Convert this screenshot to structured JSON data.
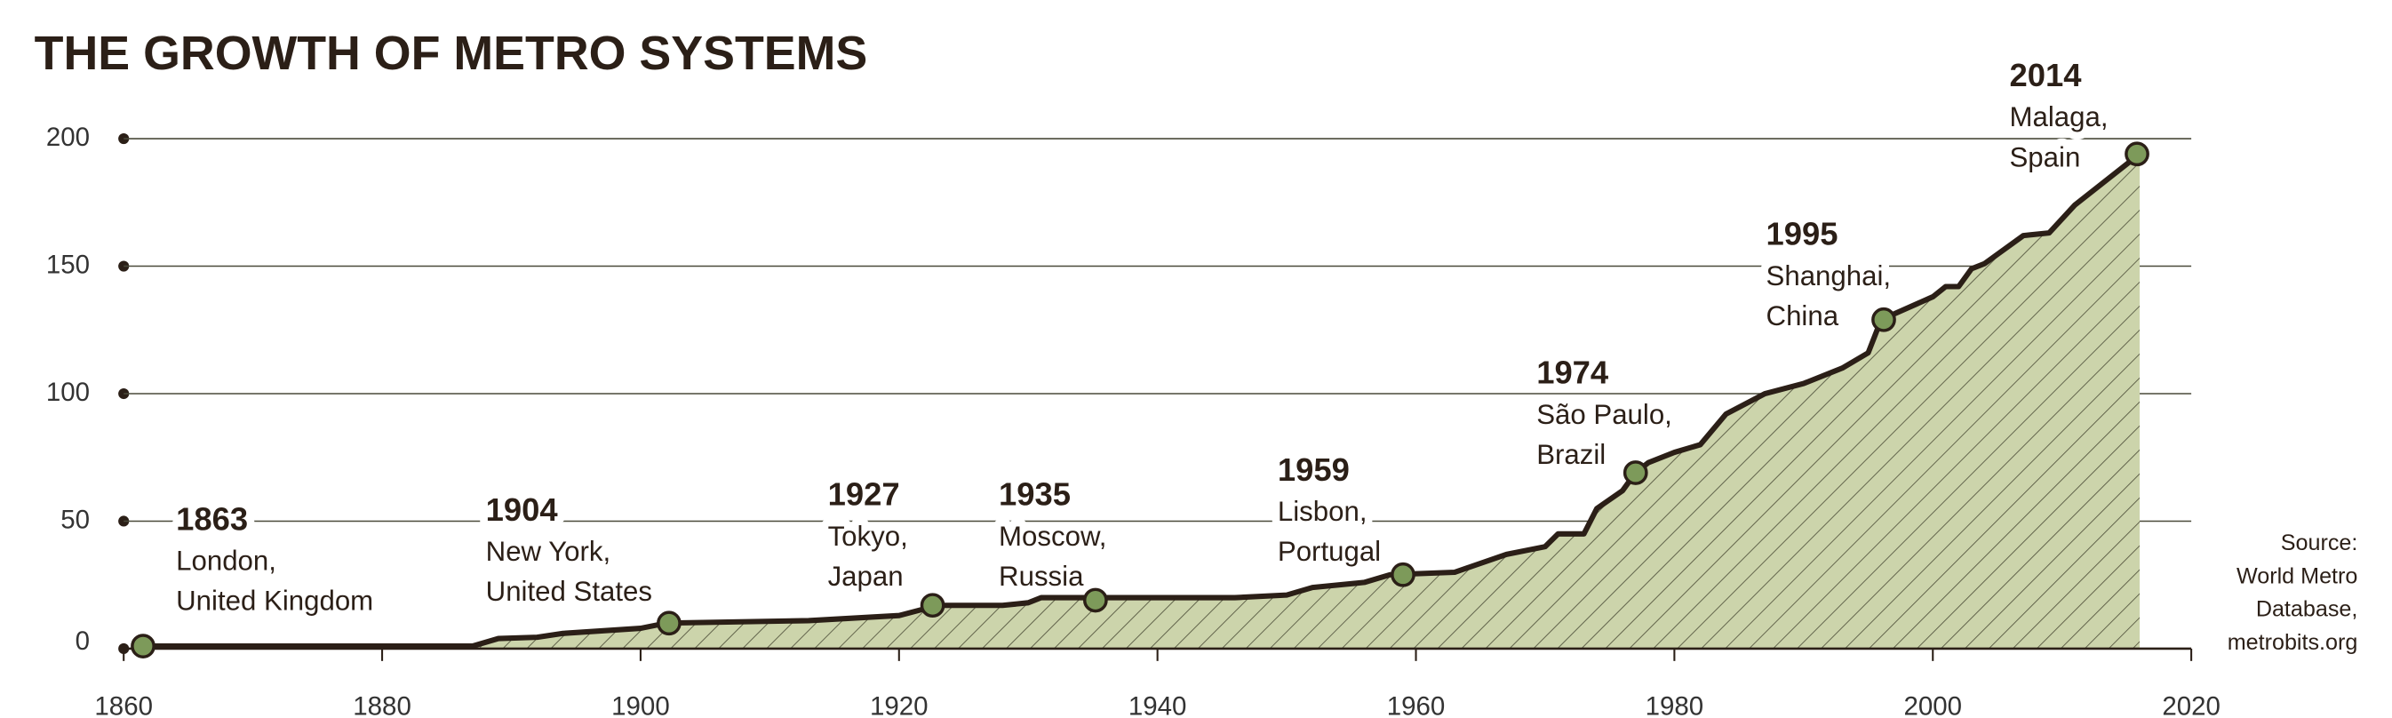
{
  "chart_data": {
    "type": "area",
    "title": "THE GROWTH OF METRO SYSTEMS",
    "x": [
      1861.5,
      1887,
      1889,
      1892,
      1894,
      1900,
      1902,
      1913,
      1920,
      1923,
      1928,
      1930,
      1931,
      1946,
      1950,
      1952,
      1956,
      1958,
      1963,
      1967,
      1970,
      1971,
      1973,
      1974,
      1976,
      1977,
      1978,
      1980,
      1982,
      1984,
      1987,
      1990,
      1993,
      1995,
      1996,
      2000,
      2001,
      2002,
      2003,
      2004,
      2007,
      2009,
      2011,
      2016
    ],
    "values": [
      1,
      1,
      4,
      4.5,
      6,
      8,
      10,
      11,
      13,
      17,
      17,
      18,
      20,
      20,
      21,
      24,
      26,
      29,
      30,
      37,
      40,
      45,
      45,
      55,
      62,
      69,
      73,
      77,
      80,
      92,
      100,
      104,
      110,
      116,
      129,
      138,
      142,
      142,
      149,
      151,
      162,
      163,
      174,
      194
    ],
    "color": "#2b1f17",
    "fill": "#ccd4ab",
    "xlim": [
      1860,
      2020
    ],
    "ylim": [
      0,
      200
    ],
    "xticks": [
      1860,
      1880,
      1900,
      1920,
      1940,
      1960,
      1980,
      2000,
      2020
    ],
    "yticks": [
      0,
      50,
      100,
      150,
      200
    ],
    "grid": true,
    "milestones": [
      {
        "year": "1863",
        "place": [
          "London,",
          "United Kingdom"
        ],
        "x": 1861.5,
        "y": 1
      },
      {
        "year": "1904",
        "place": [
          "New York,",
          "United States"
        ],
        "x": 1902.2,
        "y": 10
      },
      {
        "year": "1927",
        "place": [
          "Tokyo,",
          "Japan"
        ],
        "x": 1922.6,
        "y": 17
      },
      {
        "year": "1935",
        "place": [
          "Moscow,",
          "Russia"
        ],
        "x": 1935.2,
        "y": 19
      },
      {
        "year": "1959",
        "place": [
          "Lisbon,",
          "Portugal"
        ],
        "x": 1959,
        "y": 29
      },
      {
        "year": "1974",
        "place": [
          "São Paulo,",
          "Brazil"
        ],
        "x": 1977,
        "y": 69
      },
      {
        "year": "1995",
        "place": [
          "Shanghai,",
          "China"
        ],
        "x": 1996.2,
        "y": 129
      },
      {
        "year": "2014",
        "place": [
          "Malaga,",
          "Spain"
        ],
        "x": 2015.8,
        "y": 194
      }
    ],
    "source": [
      "Source:",
      "World Metro",
      "Database,",
      "metrobits.org"
    ]
  }
}
